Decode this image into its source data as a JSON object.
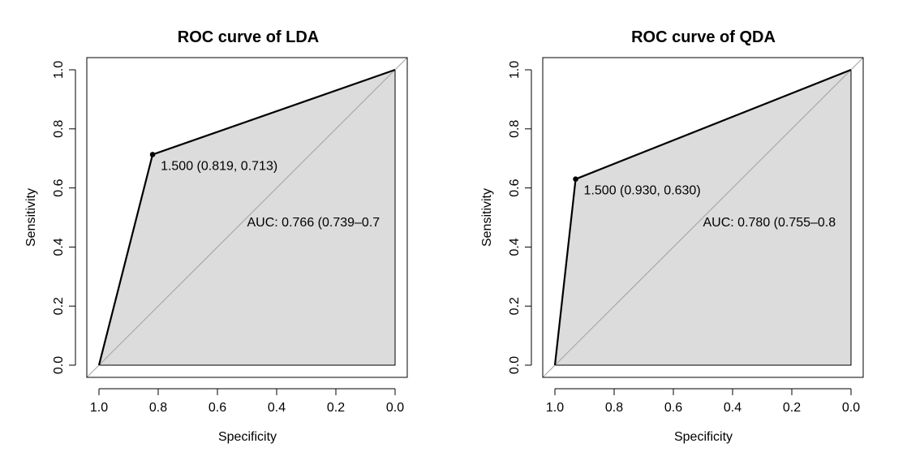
{
  "chart_data": [
    {
      "type": "line",
      "title": "ROC curve of LDA",
      "xlabel": "Specificity",
      "ylabel": "Sensitivity",
      "xlim": [
        1.0,
        0.0
      ],
      "ylim": [
        0.0,
        1.0
      ],
      "x_reversed": true,
      "x_ticks": [
        1.0,
        0.8,
        0.6,
        0.4,
        0.2,
        0.0
      ],
      "x_tick_labels": [
        "1.0",
        "0.8",
        "0.6",
        "0.4",
        "0.2",
        "0.0"
      ],
      "y_ticks": [
        0.0,
        0.2,
        0.4,
        0.6,
        0.8,
        1.0
      ],
      "y_tick_labels": [
        "0.0",
        "0.2",
        "0.4",
        "0.6",
        "0.8",
        "1.0"
      ],
      "grid": false,
      "auc_polygon_fill": "#dcdcdc",
      "diagonal_color": "#a9a9a9",
      "series": [
        {
          "x": [
            1.0,
            0.819,
            0.0
          ],
          "y": [
            0.0,
            0.713,
            1.0
          ]
        }
      ],
      "threshold_point": {
        "x": 0.819,
        "y": 0.713,
        "label": "1.500 (0.819, 0.713)"
      },
      "auc_label": "AUC: 0.766 (0.739–0.7"
    },
    {
      "type": "line",
      "title": "ROC curve of QDA",
      "xlabel": "Specificity",
      "ylabel": "Sensitivity",
      "xlim": [
        1.0,
        0.0
      ],
      "ylim": [
        0.0,
        1.0
      ],
      "x_reversed": true,
      "x_ticks": [
        1.0,
        0.8,
        0.6,
        0.4,
        0.2,
        0.0
      ],
      "x_tick_labels": [
        "1.0",
        "0.8",
        "0.6",
        "0.4",
        "0.2",
        "0.0"
      ],
      "y_ticks": [
        0.0,
        0.2,
        0.4,
        0.6,
        0.8,
        1.0
      ],
      "y_tick_labels": [
        "0.0",
        "0.2",
        "0.4",
        "0.6",
        "0.8",
        "1.0"
      ],
      "grid": false,
      "auc_polygon_fill": "#dcdcdc",
      "diagonal_color": "#a9a9a9",
      "series": [
        {
          "x": [
            1.0,
            0.93,
            0.0
          ],
          "y": [
            0.0,
            0.63,
            1.0
          ]
        }
      ],
      "threshold_point": {
        "x": 0.93,
        "y": 0.63,
        "label": "1.500 (0.930, 0.630)"
      },
      "auc_label": "AUC: 0.780 (0.755–0.8"
    }
  ]
}
